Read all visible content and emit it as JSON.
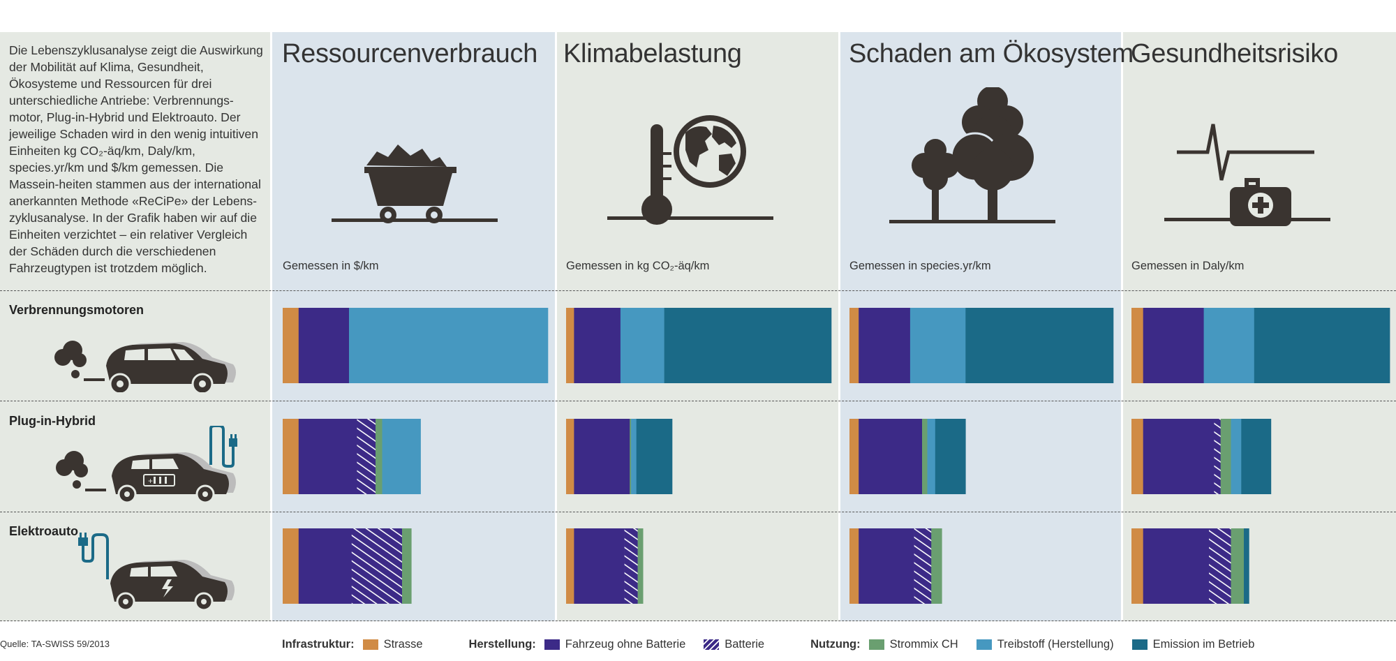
{
  "intro_text": "Die Lebenszyklusanalyse zeigt die Auswirkung der Mobilität auf Klima, Gesundheit, Ökosysteme und Ressourcen für drei unterschiedliche Antriebe: Verbrennungs-motor, Plug-in-Hybrid und Elektroauto. Der jeweilige Schaden wird in den wenig intuitiven Einheiten kg CO₂-äq/km, Daly/km, species.yr/km und $/km gemessen. Die Massein-heiten stammen aus der international anerkannten Methode «ReCiPe» der Lebens-zyklusanalyse. In der Grafik haben wir auf die Einheiten verzichtet – ein relativer Vergleich der Schäden durch die verschiedenen Fahrzeugtypen ist trotzdem möglich.",
  "columns": [
    {
      "title": "Ressourcenverbrauch",
      "unit": "Gemessen in $/km",
      "icon": "mine-cart-icon"
    },
    {
      "title": "Klimabelastung",
      "unit": "Gemessen in kg CO₂-äq/km",
      "icon": "thermometer-globe-icon"
    },
    {
      "title": "Schaden am Ökosystem",
      "unit": "Gemessen in species.yr/km",
      "icon": "trees-icon"
    },
    {
      "title": "Gesundheitsrisiko",
      "unit": "Gemessen in Daly/km",
      "icon": "first-aid-kit-icon"
    }
  ],
  "rows": [
    {
      "label": "Verbrennungsmotoren",
      "icon": "combustion-car-icon"
    },
    {
      "label": "Plug-in-Hybrid",
      "icon": "hybrid-car-icon"
    },
    {
      "label": "Elektroauto",
      "icon": "electric-car-icon"
    }
  ],
  "legend": {
    "groups": [
      {
        "title": "Infrastruktur:",
        "items": [
          {
            "label": "Strasse",
            "key": "strasse"
          }
        ]
      },
      {
        "title": "Herstellung:",
        "items": [
          {
            "label": "Fahrzeug ohne Batterie",
            "key": "fahrzeug"
          },
          {
            "label": "Batterie",
            "key": "batterie"
          }
        ]
      },
      {
        "title": "Nutzung:",
        "items": [
          {
            "label": "Strommix CH",
            "key": "strommix"
          },
          {
            "label": "Treibstoff (Herstellung)",
            "key": "treibstoff"
          },
          {
            "label": "Emission im Betrieb",
            "key": "emission"
          }
        ]
      }
    ]
  },
  "source": "Quelle: TA-SWISS 59/2013",
  "colors": {
    "strasse": "#d08b45",
    "fahrzeug": "#3c2a87",
    "batterie": "#3c2a87",
    "strommix": "#6a9f70",
    "treibstoff": "#4698c0",
    "emission": "#1b6a87",
    "icon": "#3a3430",
    "icon_accent": "#1b6a87"
  },
  "chart_data": {
    "type": "bar",
    "orientation": "horizontal",
    "stacked": true,
    "note": "relative values, each panel scaled to its Verbrennungsmotoren total = 100",
    "segments": [
      "Strasse",
      "Fahrzeug ohne Batterie",
      "Batterie",
      "Strommix CH",
      "Treibstoff (Herstellung)",
      "Emission im Betrieb"
    ],
    "panels": [
      {
        "title": "Ressourcenverbrauch",
        "rows": [
          {
            "label": "Verbrennungsmotoren",
            "values": [
              6,
              19,
              0,
              0,
              75,
              0
            ]
          },
          {
            "label": "Plug-in-Hybrid",
            "values": [
              6,
              22,
              7,
              2.5,
              14.5,
              0
            ]
          },
          {
            "label": "Elektroauto",
            "values": [
              6,
              20,
              19,
              3.5,
              0,
              0
            ]
          }
        ]
      },
      {
        "title": "Klimabelastung",
        "rows": [
          {
            "label": "Verbrennungsmotoren",
            "values": [
              3,
              17.5,
              0,
              0,
              16.5,
              63
            ]
          },
          {
            "label": "Plug-in-Hybrid",
            "values": [
              3,
              21,
              0,
              0.5,
              2,
              13.5
            ]
          },
          {
            "label": "Elektroauto",
            "values": [
              3,
              19,
              5,
              2,
              0,
              0
            ]
          }
        ]
      },
      {
        "title": "Schaden am Ökosystem",
        "rows": [
          {
            "label": "Verbrennungsmotoren",
            "values": [
              3.5,
              19.5,
              0,
              0,
              21,
              56
            ]
          },
          {
            "label": "Plug-in-Hybrid",
            "values": [
              3.5,
              24,
              0,
              2,
              3,
              11.5
            ]
          },
          {
            "label": "Elektroauto",
            "values": [
              3.5,
              21,
              6.5,
              4,
              0,
              0
            ]
          }
        ]
      },
      {
        "title": "Gesundheitsrisiko",
        "rows": [
          {
            "label": "Verbrennungsmotoren",
            "values": [
              4.5,
              23.5,
              0,
              0,
              19.5,
              52.5
            ]
          },
          {
            "label": "Plug-in-Hybrid",
            "values": [
              4.5,
              27.5,
              2.5,
              4,
              4,
              11.5
            ]
          },
          {
            "label": "Elektroauto",
            "values": [
              4.5,
              25.5,
              8.5,
              5,
              0,
              2
            ]
          }
        ]
      }
    ]
  }
}
